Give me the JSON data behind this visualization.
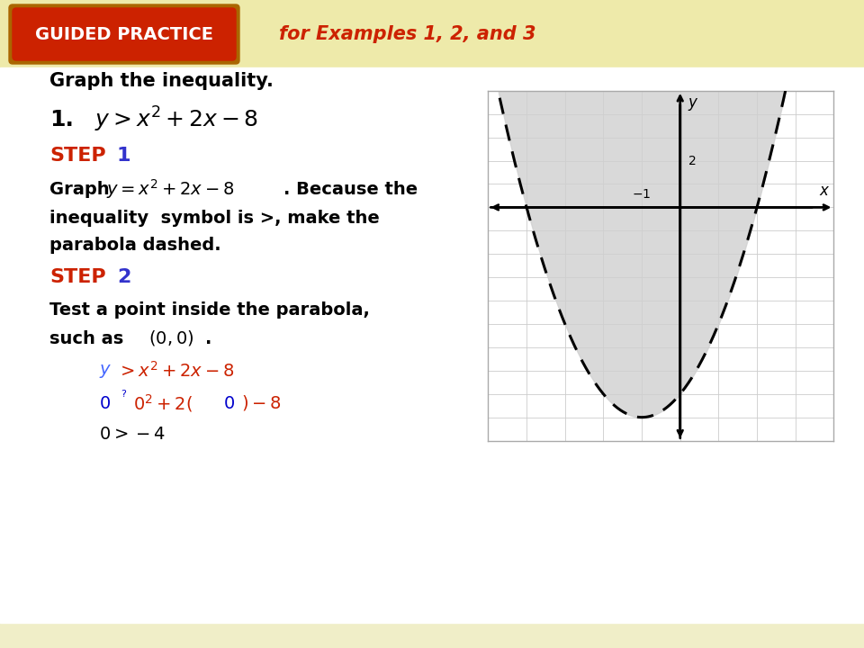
{
  "bg_stripe_light": "#FDFDE8",
  "bg_stripe_dark": "#F0EEC8",
  "header_bg": "#EEEAAA",
  "guided_practice_bg": "#CC2200",
  "guided_practice_border": "#AA6600",
  "guided_practice_text": "GUIDED PRACTICE",
  "guided_practice_text_color": "#FFFFFF",
  "for_examples_text": "for Examples 1, 2, and 3",
  "for_examples_color": "#CC2200",
  "body_bg": "#FFFFFF",
  "step_color": "#CC2200",
  "step_num_color": "#3333CC",
  "shade_color": "#D0D0D0",
  "graph_border_color": "#AAAAAA",
  "graph_xlim": [
    -5,
    4
  ],
  "graph_ylim": [
    -10,
    5
  ],
  "bottom_strip_color": "#F0EEC8"
}
